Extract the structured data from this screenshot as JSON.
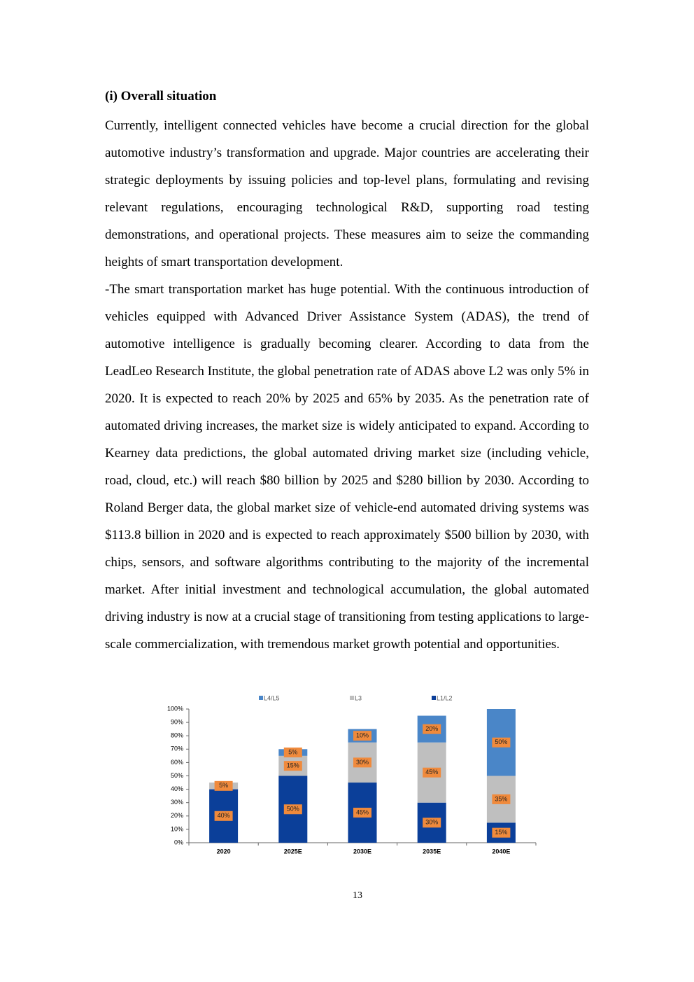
{
  "heading": "(i) Overall situation",
  "paragraphs": [
    "Currently, intelligent connected vehicles have become a crucial direction for the global automotive industry’s transformation and upgrade. Major countries are accelerating their strategic deployments by issuing policies and top-level plans, formulating and revising relevant regulations, encouraging technological R&D, supporting road testing demonstrations, and operational projects. These measures aim to seize the commanding heights of smart transportation development.",
    "-The smart transportation market has huge potential. With the continuous introduction of vehicles equipped with Advanced Driver Assistance System (ADAS), the trend of automotive intelligence is gradually becoming clearer. According to data from the LeadLeo Research Institute, the global penetration rate of ADAS above L2 was only 5% in 2020. It is expected to reach 20% by 2025 and 65% by 2035. As the penetration rate of automated driving increases, the market size is widely anticipated to expand. According to Kearney data predictions, the global automated driving market size (including vehicle, road, cloud, etc.) will reach $80 billion by 2025 and $280 billion by 2030. According to Roland Berger data, the global market size of vehicle-end automated driving systems was $113.8 billion in 2020 and is expected to reach approximately $500 billion by 2030, with chips, sensors, and software algorithms contributing to the majority of the incremental market. After initial investment and technological accumulation, the global automated driving industry is now at a crucial stage of transitioning from testing applications to large-scale commercialization, with tremendous market growth potential and opportunities."
  ],
  "chart_data": {
    "type": "stacked_bar",
    "categories": [
      "2020",
      "2025E",
      "2030E",
      "2035E",
      "2040E"
    ],
    "series": [
      {
        "name": "L1/L2",
        "color": "#0b3f99",
        "values": [
          40,
          50,
          45,
          30,
          15
        ],
        "value_labels": [
          "40%",
          "50%",
          "45%",
          "30%",
          "15%"
        ]
      },
      {
        "name": "L3",
        "color": "#bfbfbf",
        "values": [
          5,
          15,
          30,
          45,
          35
        ],
        "value_labels": [
          "5%",
          "15%",
          "30%",
          "45%",
          "35%"
        ]
      },
      {
        "name": "L4/L5",
        "color": "#4a86c8",
        "values": [
          null,
          5,
          10,
          20,
          50
        ],
        "value_labels": [
          null,
          "5%",
          "10%",
          "20%",
          "50%"
        ]
      }
    ],
    "legend_order": [
      "L4/L5",
      "L3",
      "L1/L2"
    ],
    "label_color": "#f08a3c",
    "ylim": [
      0,
      100
    ],
    "yticks": [
      {
        "value": 0,
        "label": "0%"
      },
      {
        "value": 10,
        "label": "10%"
      },
      {
        "value": 20,
        "label": "20%"
      },
      {
        "value": 30,
        "label": "30%"
      },
      {
        "value": 40,
        "label": "40%"
      },
      {
        "value": 50,
        "label": "50%"
      },
      {
        "value": 60,
        "label": "60%"
      },
      {
        "value": 70,
        "label": "70%"
      },
      {
        "value": 80,
        "label": "80%"
      },
      {
        "value": 90,
        "label": "90%"
      },
      {
        "value": 100,
        "label": "100%"
      }
    ]
  },
  "page_number": "13"
}
